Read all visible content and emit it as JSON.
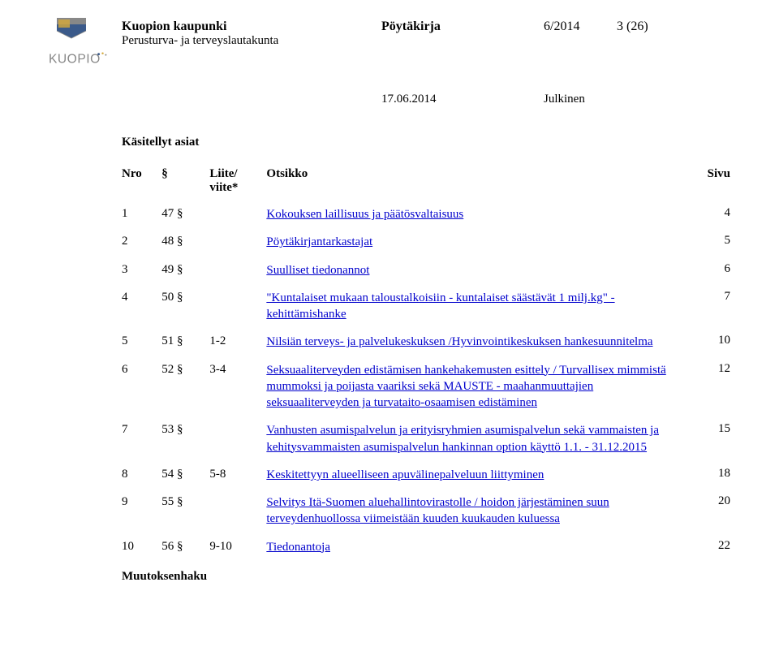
{
  "header": {
    "org": "Kuopion kaupunki",
    "board": "Perusturva- ja terveyslautakunta",
    "doctype": "Pöytäkirja",
    "docnum": "6/2014",
    "pagenum": "3 (26)",
    "date": "17.06.2014",
    "publicity": "Julkinen"
  },
  "section_title": "Käsitellyt asiat",
  "columns": {
    "nro": "Nro",
    "section": "§",
    "liite_line1": "Liite/",
    "liite_line2": "viite*",
    "otsikko": "Otsikko",
    "sivu": "Sivu"
  },
  "rows": [
    {
      "nro": "1",
      "sec": "47 §",
      "liite": "",
      "title": "Kokouksen laillisuus ja päätösvaltaisuus",
      "page": "4"
    },
    {
      "nro": "2",
      "sec": "48 §",
      "liite": "",
      "title": "Pöytäkirjantarkastajat",
      "page": "5"
    },
    {
      "nro": "3",
      "sec": "49 §",
      "liite": "",
      "title": "Suulliset tiedonannot",
      "page": "6"
    },
    {
      "nro": "4",
      "sec": "50 §",
      "liite": "",
      "title": "\"Kuntalaiset mukaan taloustalkoisiin - kuntalaiset säästävät 1 milj.kg\" -kehittämishanke",
      "page": "7"
    },
    {
      "nro": "5",
      "sec": "51 §",
      "liite": "1-2",
      "title": "Nilsiän terveys- ja palvelukeskuksen /Hyvinvointikeskuksen hankesuunnitelma",
      "page": "10"
    },
    {
      "nro": "6",
      "sec": "52 §",
      "liite": "3-4",
      "title": "Seksuaaliterveyden edistämisen hankehakemusten esittely / Turvallisex mimmistä mummoksi ja poijasta vaariksi sekä MAUSTE - maahanmuuttajien seksuaaliterveyden ja turvataito-osaamisen edistäminen",
      "page": "12"
    },
    {
      "nro": "7",
      "sec": "53 §",
      "liite": "",
      "title": "Vanhusten asumispalvelun ja erityisryhmien asumispalvelun sekä vammaisten ja kehitysvammaisten asumispalvelun hankinnan option käyttö 1.1. - 31.12.2015",
      "page": "15"
    },
    {
      "nro": "8",
      "sec": "54 §",
      "liite": "5-8",
      "title": "Keskitettyyn alueelliseen apuvälinepalveluun liittyminen",
      "page": "18"
    },
    {
      "nro": "9",
      "sec": "55 §",
      "liite": "",
      "title": "Selvitys Itä-Suomen aluehallintovirastolle / hoidon järjestäminen suun terveydenhuollossa viimeistään kuuden kuukauden kuluessa",
      "page": "20"
    },
    {
      "nro": "10",
      "sec": "56 §",
      "liite": "9-10",
      "title": "Tiedonantoja",
      "page": "22"
    }
  ],
  "footer": "Muutoksenhaku",
  "colors": {
    "link": "#0000cc",
    "text": "#000000",
    "bg": "#ffffff",
    "crest_blue": "#3b5a8a",
    "crest_gray": "#888888",
    "crest_yellow": "#d4a93a"
  }
}
